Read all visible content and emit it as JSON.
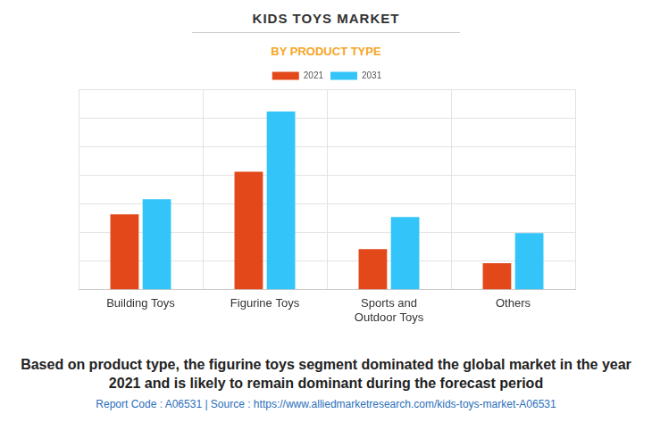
{
  "chart_data": {
    "type": "bar",
    "title": "KIDS TOYS MARKET",
    "subtitle": "BY PRODUCT TYPE",
    "categories": [
      "Building Toys",
      "Figurine Toys",
      "Sports and Outdoor Toys",
      "Others"
    ],
    "series": [
      {
        "name": "2021",
        "color": "#e3481a",
        "values": [
          2.63,
          4.12,
          1.42,
          0.93
        ]
      },
      {
        "name": "2031",
        "color": "#33c5fa",
        "values": [
          3.16,
          6.22,
          2.54,
          1.98
        ]
      }
    ],
    "ylim": [
      0,
      7
    ],
    "yticks": [
      0,
      1,
      2,
      3,
      4,
      5,
      6,
      7
    ],
    "grid": true,
    "legend": "top",
    "tick_labels": "x",
    "caption": "Based on product type, the figurine toys segment dominated the global market in the year 2021 and is likely to remain dominant during the forecast period",
    "source": "Report Code : A06531  |  Source : https://www.alliedmarketresearch.com/kids-toys-market-A06531"
  }
}
